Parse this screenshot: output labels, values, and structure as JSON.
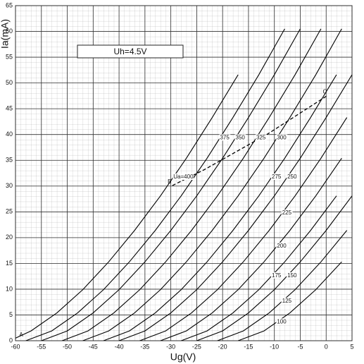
{
  "chart_data": {
    "type": "line",
    "x_label": "Ug(V)",
    "y_label": "Ia(mA)",
    "annotations": [
      "Uh=4.5V",
      "A"
    ],
    "xlim": [
      -60,
      5
    ],
    "ylim": [
      0,
      65
    ],
    "xticks": [
      -60,
      -55,
      -50,
      -45,
      -40,
      -35,
      -30,
      -25,
      -20,
      -15,
      -10,
      -5,
      0,
      5
    ],
    "yticks": [
      0,
      5,
      10,
      15,
      20,
      25,
      30,
      35,
      40,
      45,
      50,
      55,
      60,
      65
    ],
    "grid": true,
    "series": [
      {
        "name": "Ua=400",
        "color": "#000000",
        "x": [
          -60,
          -57,
          -52,
          -47,
          -42,
          -37,
          -32,
          -27,
          -22,
          -17
        ],
        "values": [
          0.5,
          1.9,
          5.4,
          9.9,
          15.3,
          21.4,
          28.1,
          35.4,
          43.3,
          51.6
        ]
      },
      {
        "name": "375",
        "color": "#000000",
        "x": [
          -58,
          -53,
          -48,
          -43,
          -38,
          -33,
          -28,
          -23,
          -18,
          -13,
          -8
        ],
        "values": [
          0,
          1.9,
          5.4,
          9.9,
          15.3,
          21.4,
          28.1,
          35.4,
          43.3,
          51.6,
          60.5
        ]
      },
      {
        "name": "350",
        "color": "#000000",
        "x": [
          -55,
          -50,
          -45,
          -40,
          -35,
          -30,
          -25,
          -20,
          -15,
          -10,
          -5
        ],
        "values": [
          0,
          1.9,
          5.4,
          9.9,
          15.3,
          21.4,
          28.1,
          35.4,
          43.3,
          51.6,
          60.5
        ]
      },
      {
        "name": "325",
        "color": "#000000",
        "x": [
          -51,
          -46,
          -41,
          -36,
          -31,
          -26,
          -21,
          -16,
          -11,
          -6,
          -1
        ],
        "values": [
          0,
          1.9,
          5.4,
          9.9,
          15.3,
          21.4,
          28.1,
          35.4,
          43.3,
          51.6,
          60.5
        ]
      },
      {
        "name": "300",
        "color": "#000000",
        "x": [
          -47,
          -42,
          -37,
          -32,
          -27,
          -22,
          -17,
          -12,
          -7,
          -2,
          3
        ],
        "values": [
          0,
          1.9,
          5.4,
          9.9,
          15.3,
          21.4,
          28.1,
          35.4,
          43.3,
          51.6,
          60.5
        ]
      },
      {
        "name": "275",
        "color": "#000000",
        "x": [
          -43,
          -38,
          -33,
          -28,
          -23,
          -18,
          -13,
          -8,
          -3,
          2
        ],
        "values": [
          0,
          1.9,
          5.4,
          9.9,
          15.3,
          21.4,
          28.1,
          35.4,
          43.3,
          51.6
        ]
      },
      {
        "name": "250",
        "color": "#000000",
        "x": [
          -40,
          -35,
          -30,
          -25,
          -20,
          -15,
          -10,
          -5,
          0,
          5
        ],
        "values": [
          0,
          1.9,
          5.4,
          9.9,
          15.3,
          21.4,
          28.1,
          35.4,
          43.3,
          51.6
        ]
      },
      {
        "name": "225",
        "color": "#000000",
        "x": [
          -36,
          -31,
          -26,
          -21,
          -16,
          -11,
          -6,
          -1,
          4
        ],
        "values": [
          0,
          1.9,
          5.4,
          9.9,
          15.3,
          21.4,
          28.1,
          35.4,
          43.3
        ]
      },
      {
        "name": "200",
        "color": "#000000",
        "x": [
          -32,
          -27,
          -22,
          -17,
          -12,
          -7,
          -2,
          3
        ],
        "values": [
          0,
          1.9,
          5.4,
          9.9,
          15.3,
          21.4,
          28.1,
          35.4
        ]
      },
      {
        "name": "175",
        "color": "#000000",
        "x": [
          -28,
          -23,
          -18,
          -13,
          -8,
          -3,
          2
        ],
        "values": [
          0,
          1.9,
          5.4,
          9.9,
          15.3,
          21.4,
          28.1
        ]
      },
      {
        "name": "150",
        "color": "#000000",
        "x": [
          -25,
          -20,
          -15,
          -10,
          -5,
          0,
          5
        ],
        "values": [
          0,
          1.9,
          5.4,
          9.9,
          15.3,
          21.4,
          28.1
        ]
      },
      {
        "name": "125",
        "color": "#000000",
        "x": [
          -21,
          -16,
          -11,
          -6,
          -1,
          4
        ],
        "values": [
          0,
          1.9,
          5.4,
          9.9,
          15.3,
          21.4
        ]
      },
      {
        "name": "100",
        "color": "#000000",
        "x": [
          -17,
          -12,
          -7,
          -2,
          3
        ],
        "values": [
          0,
          1.9,
          5.4,
          9.9,
          15.3
        ]
      },
      {
        "color": "#000000",
        "dashed": true,
        "x": [
          -29.7,
          -23.5,
          -11.3,
          0.3
        ],
        "values": [
          30.1,
          33.2,
          40.1,
          47.6
        ],
        "point_labels": [
          "B",
          null,
          null,
          "C"
        ]
      }
    ]
  }
}
